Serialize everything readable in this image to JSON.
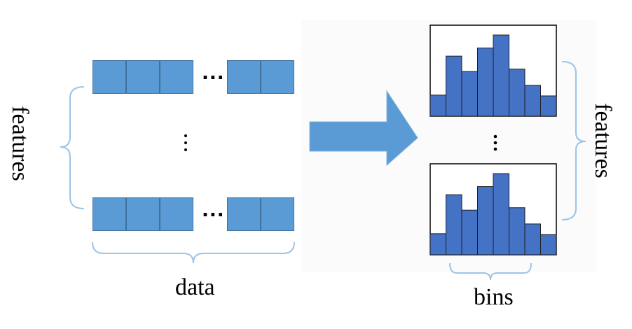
{
  "labels": {
    "left_features": "features",
    "right_features": "features",
    "data": "data",
    "bins": "bins"
  },
  "ellipsis": "...",
  "icons": {
    "arrow": "right-arrow-icon"
  },
  "colors": {
    "cell_fill": "#5b9bd5",
    "cell_border": "#41719c",
    "bar_fill": "#4472c4",
    "bar_border": "#1f1f1f",
    "brace": "#9dc3e6",
    "arrow": "#5b9bd5"
  },
  "histogram": {
    "bins": 8,
    "values": [
      0.26,
      0.74,
      0.55,
      0.84,
      1.0,
      0.58,
      0.38,
      0.25
    ]
  }
}
